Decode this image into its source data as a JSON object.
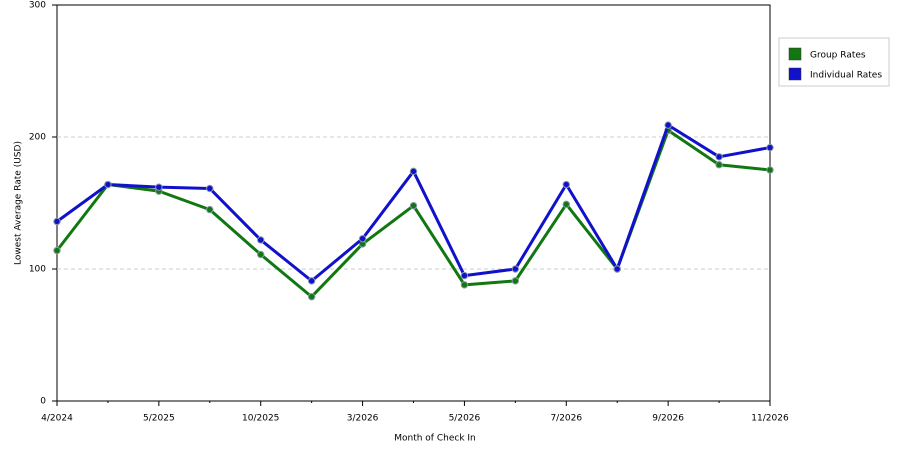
{
  "chart_data": {
    "type": "line",
    "x_label": "Month of Check In",
    "y_label": "Lowest Average Rate (USD)",
    "categories": [
      "4/2024",
      null,
      "5/2025",
      null,
      "10/2025",
      null,
      "3/2026",
      null,
      "5/2026",
      null,
      "7/2026",
      null,
      "9/2026",
      null,
      "11/2026"
    ],
    "series": [
      {
        "name": "Group Rates",
        "color": "#117711",
        "values": [
          114,
          164,
          159,
          145,
          111,
          79,
          119,
          148,
          88,
          91,
          149,
          100,
          205,
          179,
          175
        ]
      },
      {
        "name": "Individual Rates",
        "color": "#1111cc",
        "values": [
          136,
          164,
          162,
          161,
          122,
          91,
          123,
          174,
          95,
          100,
          164,
          100,
          209,
          185,
          192
        ]
      }
    ],
    "ylim": [
      0,
      300
    ],
    "yticks": [
      0,
      100,
      200,
      300
    ],
    "grid": true,
    "legend": "right"
  }
}
